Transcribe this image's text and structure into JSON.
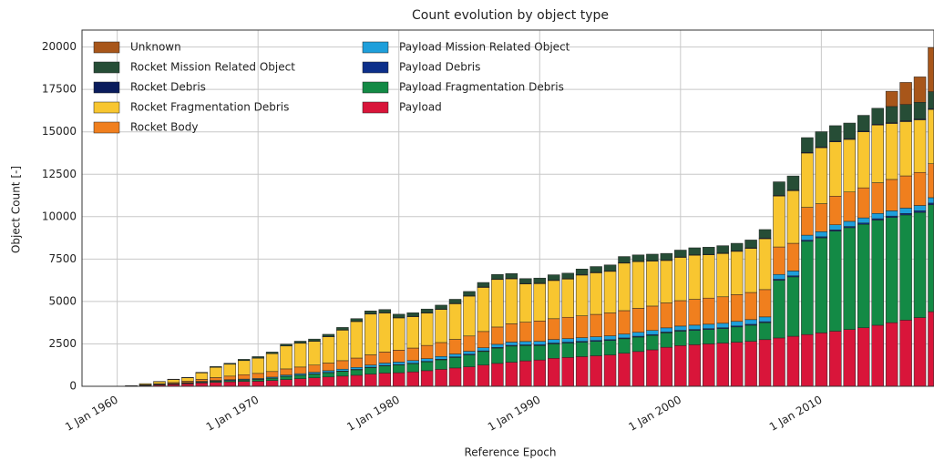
{
  "chart_data": {
    "type": "stacked_bar",
    "title": "Count evolution by object type",
    "xlabel": "Reference Epoch",
    "ylabel": "Object Count [-]",
    "x": [
      1961,
      1962,
      1963,
      1964,
      1965,
      1966,
      1967,
      1968,
      1969,
      1970,
      1971,
      1972,
      1973,
      1974,
      1975,
      1976,
      1977,
      1978,
      1979,
      1980,
      1981,
      1982,
      1983,
      1984,
      1985,
      1986,
      1987,
      1988,
      1989,
      1990,
      1991,
      1992,
      1993,
      1994,
      1995,
      1996,
      1997,
      1998,
      1999,
      2000,
      2001,
      2002,
      2003,
      2004,
      2005,
      2006,
      2007,
      2008,
      2009,
      2010,
      2011,
      2012,
      2013,
      2014,
      2015,
      2016,
      2017,
      2018
    ],
    "xlim": [
      1957.5,
      2018
    ],
    "xticks": [
      {
        "value": 1960,
        "label": "1 Jan 1960"
      },
      {
        "value": 1970,
        "label": "1 Jan 1970"
      },
      {
        "value": 1980,
        "label": "1 Jan 1980"
      },
      {
        "value": 1990,
        "label": "1 Jan 1990"
      },
      {
        "value": 2000,
        "label": "1 Jan 2000"
      },
      {
        "value": 2010,
        "label": "1 Jan 2010"
      }
    ],
    "ylim": [
      0,
      21000
    ],
    "yticks": [
      0,
      2500,
      5000,
      7500,
      10000,
      12500,
      15000,
      17500,
      20000
    ],
    "grid": true,
    "legend": "upper left",
    "series": [
      {
        "name": "Payload",
        "color": "#d9153a",
        "values": [
          20,
          50,
          80,
          110,
          150,
          200,
          240,
          270,
          290,
          300,
          340,
          400,
          450,
          500,
          550,
          600,
          650,
          720,
          780,
          800,
          850,
          920,
          1000,
          1080,
          1150,
          1250,
          1350,
          1420,
          1500,
          1550,
          1650,
          1700,
          1750,
          1800,
          1850,
          1950,
          2050,
          2150,
          2300,
          2400,
          2450,
          2500,
          2550,
          2600,
          2650,
          2750,
          2850,
          2950,
          3050,
          3150,
          3250,
          3350,
          3450,
          3600,
          3750,
          3900,
          4050,
          4400
        ]
      },
      {
        "name": "Payload Fragmentation Debris",
        "color": "#138a45",
        "values": [
          0,
          10,
          20,
          30,
          40,
          50,
          60,
          70,
          80,
          100,
          130,
          180,
          200,
          220,
          250,
          280,
          320,
          380,
          420,
          450,
          480,
          520,
          560,
          620,
          700,
          800,
          900,
          950,
          900,
          850,
          850,
          850,
          850,
          850,
          850,
          850,
          850,
          850,
          850,
          850,
          850,
          850,
          850,
          900,
          950,
          1000,
          3400,
          3500,
          5500,
          5600,
          5900,
          6000,
          6100,
          6200,
          6200,
          6200,
          6200,
          6300
        ]
      },
      {
        "name": "Payload Debris",
        "color": "#0c2f8a",
        "values": [
          0,
          0,
          0,
          0,
          5,
          10,
          10,
          10,
          10,
          10,
          10,
          15,
          15,
          20,
          20,
          20,
          25,
          25,
          30,
          30,
          30,
          30,
          35,
          35,
          40,
          40,
          40,
          45,
          45,
          50,
          50,
          50,
          50,
          50,
          50,
          50,
          50,
          50,
          50,
          50,
          50,
          50,
          50,
          55,
          55,
          60,
          60,
          60,
          65,
          65,
          70,
          70,
          75,
          80,
          85,
          90,
          95,
          100
        ]
      },
      {
        "name": "Payload Mission Related Object",
        "color": "#1e9fdb",
        "values": [
          5,
          10,
          15,
          20,
          25,
          30,
          35,
          40,
          45,
          50,
          60,
          70,
          80,
          90,
          100,
          110,
          120,
          130,
          140,
          150,
          155,
          160,
          165,
          170,
          175,
          180,
          185,
          190,
          195,
          200,
          205,
          210,
          215,
          220,
          225,
          230,
          235,
          240,
          245,
          250,
          255,
          260,
          265,
          270,
          275,
          280,
          285,
          290,
          295,
          300,
          300,
          305,
          305,
          310,
          310,
          315,
          315,
          320
        ]
      },
      {
        "name": "Rocket Body",
        "color": "#f07f1e",
        "values": [
          10,
          20,
          40,
          60,
          80,
          120,
          170,
          210,
          260,
          300,
          330,
          360,
          390,
          420,
          450,
          500,
          550,
          600,
          650,
          700,
          740,
          780,
          820,
          860,
          900,
          960,
          1020,
          1080,
          1140,
          1200,
          1230,
          1260,
          1290,
          1320,
          1350,
          1380,
          1410,
          1440,
          1470,
          1500,
          1520,
          1540,
          1560,
          1580,
          1600,
          1610,
          1620,
          1630,
          1640,
          1650,
          1690,
          1730,
          1770,
          1810,
          1850,
          1900,
          1950,
          2000
        ]
      },
      {
        "name": "Rocket Fragmentation Debris",
        "color": "#f8c630",
        "values": [
          5,
          60,
          120,
          180,
          200,
          380,
          600,
          700,
          830,
          900,
          1050,
          1350,
          1400,
          1400,
          1550,
          1800,
          2150,
          2400,
          2300,
          1900,
          1850,
          1900,
          1950,
          2100,
          2350,
          2600,
          2800,
          2650,
          2250,
          2200,
          2250,
          2250,
          2400,
          2450,
          2450,
          2800,
          2750,
          2650,
          2500,
          2550,
          2600,
          2550,
          2550,
          2550,
          2600,
          3000,
          3000,
          3100,
          3200,
          3300,
          3200,
          3100,
          3300,
          3400,
          3300,
          3200,
          3100,
          3200
        ]
      },
      {
        "name": "Rocket Debris",
        "color": "#0a1c5c",
        "values": [
          0,
          0,
          0,
          5,
          5,
          5,
          10,
          10,
          10,
          10,
          10,
          10,
          15,
          15,
          15,
          20,
          20,
          20,
          20,
          20,
          20,
          25,
          25,
          25,
          25,
          30,
          30,
          30,
          30,
          30,
          30,
          30,
          30,
          30,
          30,
          30,
          30,
          30,
          30,
          30,
          30,
          30,
          35,
          35,
          35,
          40,
          40,
          40,
          40,
          45,
          45,
          45,
          45,
          50,
          50,
          50,
          50,
          50
        ]
      },
      {
        "name": "Rocket Mission Related Object",
        "color": "#264d36",
        "values": [
          0,
          5,
          10,
          15,
          20,
          30,
          40,
          50,
          65,
          80,
          90,
          100,
          110,
          120,
          130,
          140,
          155,
          170,
          185,
          200,
          210,
          220,
          230,
          240,
          250,
          260,
          270,
          280,
          290,
          300,
          310,
          320,
          330,
          340,
          350,
          360,
          370,
          380,
          390,
          400,
          410,
          420,
          430,
          440,
          460,
          500,
          800,
          830,
          870,
          900,
          910,
          920,
          930,
          940,
          950,
          960,
          980,
          1000
        ]
      },
      {
        "name": "Unknown",
        "color": "#a8561a",
        "values": [
          0,
          0,
          0,
          0,
          0,
          0,
          0,
          0,
          0,
          0,
          0,
          0,
          0,
          0,
          0,
          0,
          0,
          0,
          0,
          0,
          0,
          0,
          0,
          0,
          0,
          0,
          0,
          0,
          0,
          0,
          0,
          0,
          0,
          0,
          0,
          0,
          0,
          0,
          0,
          0,
          0,
          0,
          0,
          0,
          0,
          0,
          0,
          0,
          0,
          0,
          0,
          0,
          0,
          0,
          900,
          1300,
          1500,
          2600
        ]
      }
    ]
  }
}
